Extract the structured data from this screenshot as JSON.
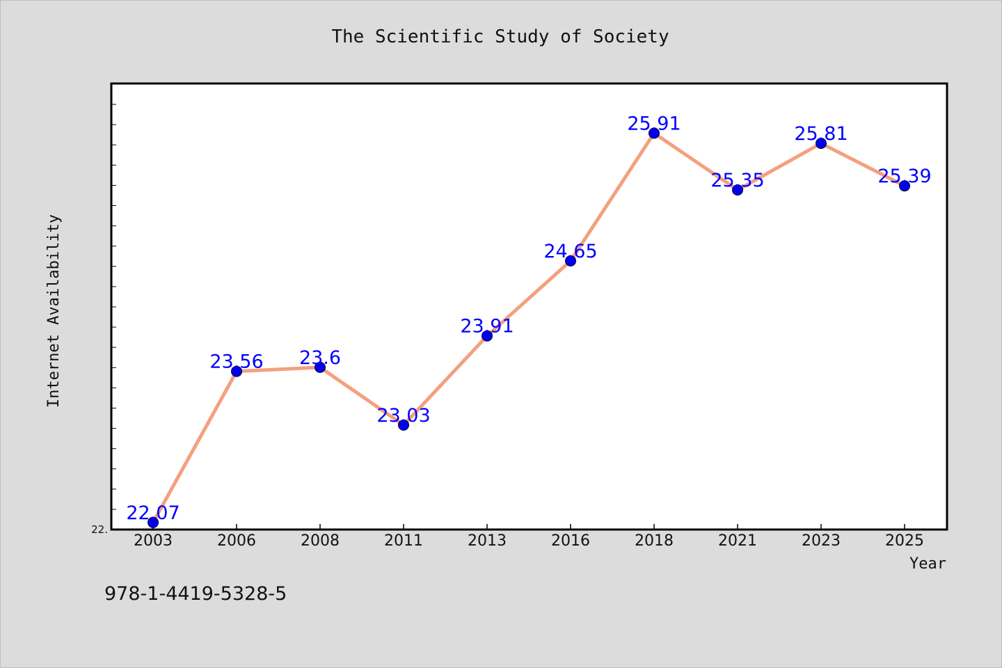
{
  "chart_data": {
    "type": "line",
    "title": "The Scientific Study of Society",
    "xlabel": "Year",
    "ylabel": "Internet Availability",
    "categories": [
      "2003",
      "2006",
      "2008",
      "2011",
      "2013",
      "2016",
      "2018",
      "2021",
      "2023",
      "2025"
    ],
    "series": [
      {
        "values": [
          22.07,
          23.56,
          23.6,
          23.03,
          23.91,
          24.65,
          25.91,
          25.35,
          25.81,
          25.39
        ],
        "labels": [
          "22.07",
          "23.56",
          "23.6",
          "23.03",
          "23.91",
          "24.65",
          "25.91",
          "25.35",
          "25.81",
          "25.39"
        ]
      }
    ],
    "ytick_label": "22.",
    "ylim": [
      22.0,
      26.4
    ],
    "grid": false,
    "colors": {
      "line": "#f4a07e",
      "marker": "#0000ee",
      "data_label": "#0000ff",
      "plot_background": "#ffffff",
      "figure_background": "#dcdcdc"
    }
  },
  "footer": {
    "isbn": "978-1-4419-5328-5"
  }
}
